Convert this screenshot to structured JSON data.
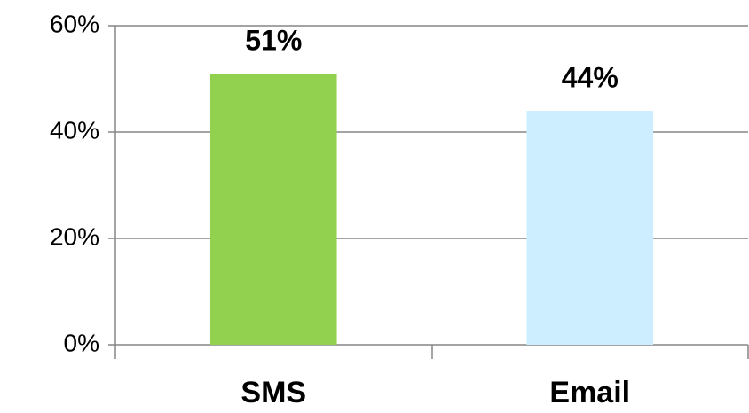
{
  "chart_data": {
    "type": "bar",
    "categories": [
      "SMS",
      "Email"
    ],
    "values": [
      51,
      44
    ],
    "value_labels": [
      "51%",
      "44%"
    ],
    "colors": [
      "#92d050",
      "#cceeff"
    ],
    "ylim": [
      0,
      60
    ],
    "yticks": [
      {
        "value": 0,
        "label": "0%"
      },
      {
        "value": 20,
        "label": "20%"
      },
      {
        "value": 40,
        "label": "40%"
      },
      {
        "value": 60,
        "label": "60%"
      }
    ],
    "grid": true
  }
}
